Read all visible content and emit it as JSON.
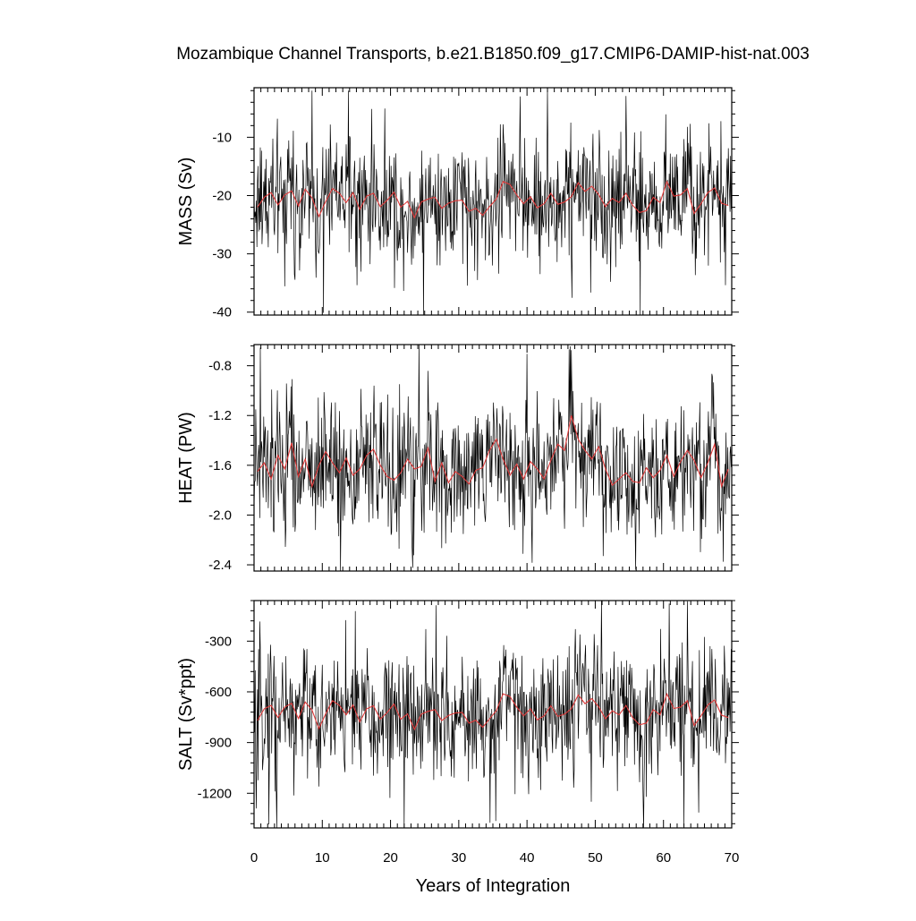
{
  "title": "Mozambique Channel Transports, b.e21.B1850.f09_g17.CMIP6-DAMIP-hist-nat.003",
  "xlabel": "Years of Integration",
  "chart_data": [
    {
      "type": "line",
      "ylabel": "MASS (Sv)",
      "xlim": [
        0,
        70
      ],
      "ylim": [
        -40.5,
        -1.5
      ],
      "yticks": [
        -40,
        -30,
        -20,
        -10
      ],
      "ytick_labels": [
        "-40",
        "-30",
        "-20",
        "-10"
      ],
      "monthly_range": [
        -40.5,
        -2
      ],
      "annual_mean_range": [
        -24,
        -17.5
      ],
      "series": [
        {
          "kind": "monthly",
          "color": "#000000"
        },
        {
          "kind": "annual-mean",
          "color": "#e03a3a",
          "values": [
            -22.0,
            -20.3,
            -19.5,
            -21.6,
            -19.9,
            -19.2,
            -21.8,
            -18.9,
            -20.4,
            -23.6,
            -21.0,
            -18.8,
            -19.6,
            -21.2,
            -19.5,
            -22.4,
            -20.1,
            -19.6,
            -21.9,
            -20.8,
            -19.4,
            -22.0,
            -21.0,
            -23.8,
            -21.1,
            -20.6,
            -20.3,
            -22.2,
            -21.3,
            -20.9,
            -20.8,
            -22.7,
            -22.2,
            -23.4,
            -21.9,
            -20.6,
            -17.6,
            -18.1,
            -19.9,
            -21.4,
            -20.2,
            -22.1,
            -21.4,
            -19.6,
            -21.5,
            -21.1,
            -20.2,
            -17.8,
            -19.3,
            -18.4,
            -19.8,
            -21.9,
            -20.5,
            -21.2,
            -19.6,
            -21.7,
            -22.9,
            -22.6,
            -20.3,
            -21.2,
            -17.6,
            -20.1,
            -19.9,
            -18.8,
            -23.1,
            -21.4,
            -19.5,
            -18.7,
            -21.3,
            -21.7
          ]
        }
      ]
    },
    {
      "type": "line",
      "ylabel": "HEAT (PW)",
      "xlim": [
        0,
        70
      ],
      "ylim": [
        -2.45,
        -0.63
      ],
      "yticks": [
        -2.4,
        -2.0,
        -1.6,
        -1.2,
        -0.8
      ],
      "ytick_labels": [
        "-2.4",
        "-2.0",
        "-1.6",
        "-1.2",
        "-0.8"
      ],
      "monthly_range": [
        -2.45,
        -0.63
      ],
      "annual_mean_range": [
        -1.8,
        -1.2
      ],
      "series": [
        {
          "kind": "monthly",
          "color": "#000000"
        },
        {
          "kind": "annual-mean",
          "color": "#e03a3a",
          "values": [
            -1.65,
            -1.58,
            -1.71,
            -1.52,
            -1.63,
            -1.42,
            -1.69,
            -1.55,
            -1.77,
            -1.6,
            -1.49,
            -1.58,
            -1.66,
            -1.54,
            -1.68,
            -1.63,
            -1.52,
            -1.47,
            -1.6,
            -1.69,
            -1.72,
            -1.66,
            -1.55,
            -1.63,
            -1.61,
            -1.46,
            -1.73,
            -1.58,
            -1.74,
            -1.65,
            -1.69,
            -1.75,
            -1.64,
            -1.62,
            -1.48,
            -1.39,
            -1.55,
            -1.68,
            -1.59,
            -1.71,
            -1.57,
            -1.63,
            -1.71,
            -1.56,
            -1.43,
            -1.48,
            -1.2,
            -1.39,
            -1.48,
            -1.55,
            -1.45,
            -1.63,
            -1.76,
            -1.71,
            -1.66,
            -1.73,
            -1.74,
            -1.62,
            -1.7,
            -1.64,
            -1.52,
            -1.69,
            -1.57,
            -1.48,
            -1.56,
            -1.7,
            -1.58,
            -1.43,
            -1.77,
            -1.63
          ]
        }
      ]
    },
    {
      "type": "line",
      "ylabel": "SALT (Sv*ppt)",
      "xlim": [
        0,
        70
      ],
      "ylim": [
        -1405,
        -60
      ],
      "yticks": [
        -1200,
        -900,
        -600,
        -300
      ],
      "ytick_labels": [
        "-1200",
        "-900",
        "-600",
        "-300"
      ],
      "monthly_range": [
        -1405,
        -60
      ],
      "annual_mean_range": [
        -820,
        -600
      ],
      "series": [
        {
          "kind": "monthly",
          "color": "#000000"
        },
        {
          "kind": "annual-mean",
          "color": "#e03a3a",
          "values": [
            -770,
            -700,
            -680,
            -752,
            -690,
            -668,
            -758,
            -660,
            -708,
            -818,
            -730,
            -652,
            -680,
            -736,
            -678,
            -778,
            -700,
            -682,
            -762,
            -722,
            -672,
            -762,
            -730,
            -822,
            -732,
            -715,
            -705,
            -770,
            -740,
            -725,
            -722,
            -785,
            -768,
            -810,
            -760,
            -712,
            -612,
            -628,
            -690,
            -742,
            -700,
            -766,
            -742,
            -682,
            -745,
            -732,
            -700,
            -618,
            -670,
            -640,
            -688,
            -760,
            -712,
            -736,
            -680,
            -754,
            -795,
            -785,
            -705,
            -736,
            -612,
            -698,
            -690,
            -652,
            -800,
            -742,
            -677,
            -648,
            -738,
            -752
          ]
        }
      ]
    }
  ]
}
